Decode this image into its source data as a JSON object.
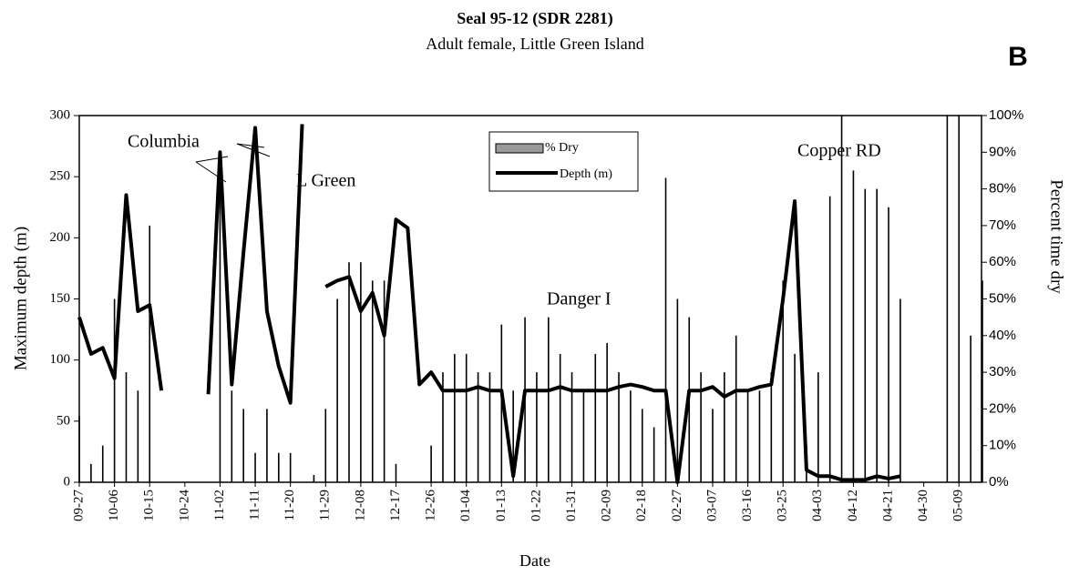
{
  "chart_data": {
    "type": "bar_line",
    "title": "Seal 95-12 (SDR 2281)",
    "subtitle": "Adult female, Little Green Island",
    "panel_label": "B",
    "xlabel": "Date",
    "ylabel": "Maximum depth (m)",
    "y2label": "Percent time dry",
    "categories": [
      "09-27",
      null,
      null,
      "10-06",
      null,
      null,
      "10-15",
      null,
      null,
      "10-24",
      null,
      null,
      "11-02",
      null,
      null,
      "11-11",
      null,
      null,
      "11-20",
      null,
      null,
      "11-29",
      null,
      null,
      "12-08",
      null,
      null,
      "12-17",
      null,
      null,
      "12-26",
      null,
      null,
      "01-04",
      null,
      null,
      "01-13",
      null,
      null,
      "01-22",
      null,
      null,
      "01-31",
      null,
      null,
      "02-09",
      null,
      null,
      "02-18",
      null,
      null,
      "02-27",
      null,
      null,
      "03-07",
      null,
      null,
      "03-16",
      null,
      null,
      "03-25",
      null,
      null,
      "04-03",
      null,
      null,
      "04-12",
      null,
      null,
      "04-21",
      null,
      null,
      "04-30",
      null,
      null,
      "05-09",
      null,
      null
    ],
    "series": [
      {
        "name": "% Dry",
        "color": "#000000",
        "axis": "y2",
        "type": "bar",
        "values": [
          18,
          5,
          10,
          50,
          30,
          25,
          70,
          0,
          0,
          0,
          0,
          0,
          90,
          25,
          20,
          8,
          20,
          8,
          8,
          0,
          2,
          20,
          50,
          60,
          60,
          55,
          55,
          5,
          0,
          0,
          10,
          30,
          35,
          35,
          30,
          30,
          43,
          25,
          45,
          30,
          45,
          35,
          30,
          25,
          35,
          38,
          30,
          25,
          20,
          15,
          83,
          50,
          45,
          30,
          20,
          30,
          40,
          25,
          25,
          30,
          55,
          35,
          10,
          30,
          78,
          100,
          85,
          80,
          80,
          75,
          50,
          0,
          0,
          0,
          100,
          100,
          40,
          55
        ]
      },
      {
        "name": "Depth (m)",
        "color": "#000000",
        "type": "line",
        "values": [
          135,
          105,
          110,
          85,
          235,
          140,
          145,
          75,
          null,
          null,
          null,
          72,
          270,
          80,
          188,
          290,
          140,
          95,
          65,
          293,
          null,
          160,
          165,
          168,
          140,
          155,
          120,
          215,
          208,
          80,
          90,
          75,
          75,
          75,
          78,
          75,
          75,
          5,
          75,
          75,
          75,
          78,
          75,
          75,
          75,
          75,
          78,
          80,
          78,
          75,
          75,
          0,
          75,
          75,
          78,
          70,
          75,
          75,
          78,
          80,
          150,
          230,
          10,
          5,
          5,
          2,
          2,
          2,
          5,
          3,
          5,
          null,
          2,
          null,
          null,
          null,
          null,
          null
        ]
      }
    ],
    "annotations": [
      "Columbia",
      "L Green",
      "Danger I",
      "Copper RD"
    ],
    "ylim": [
      0,
      300
    ],
    "yticks": [
      0,
      50,
      100,
      150,
      200,
      250,
      300
    ],
    "y2lim": [
      0,
      100
    ],
    "y2ticks": [
      {
        "value": 0,
        "label": "0%"
      },
      {
        "value": 10,
        "label": "10%"
      },
      {
        "value": 20,
        "label": "20%"
      },
      {
        "value": 30,
        "label": "30%"
      },
      {
        "value": 40,
        "label": "40%"
      },
      {
        "value": 50,
        "label": "50%"
      },
      {
        "value": 60,
        "label": "60%"
      },
      {
        "value": 70,
        "label": "70%"
      },
      {
        "value": 80,
        "label": "80%"
      },
      {
        "value": 90,
        "label": "90%"
      },
      {
        "value": 100,
        "label": "100%"
      }
    ]
  }
}
